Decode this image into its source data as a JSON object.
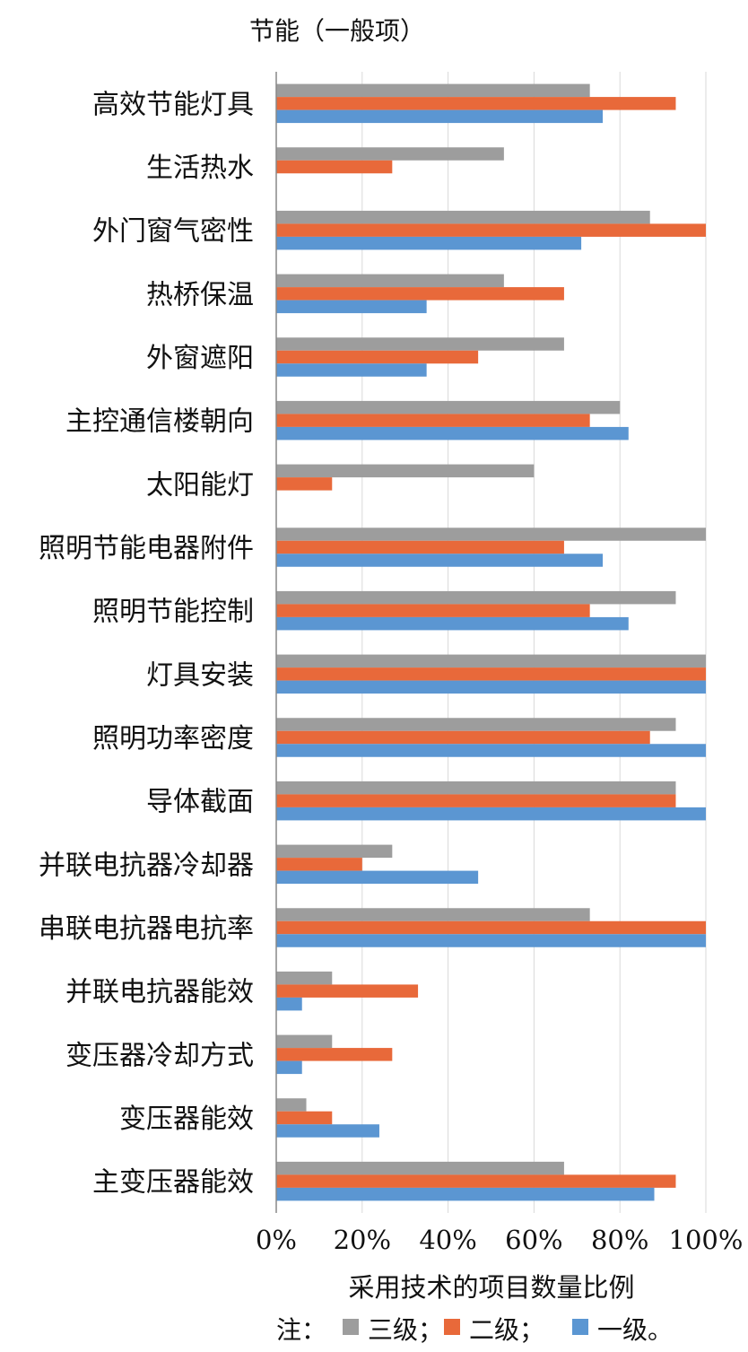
{
  "chart_data": {
    "type": "bar",
    "orientation": "horizontal",
    "title": "节能（一般项）",
    "xlabel": "采用技术的项目数量比例",
    "ylabel": "",
    "xlim": [
      0,
      100
    ],
    "x_ticks": [
      "0%",
      "20%",
      "40%",
      "60%",
      "80%",
      "100%"
    ],
    "grid": "vertical",
    "legend": {
      "position": "bottom",
      "prefix": "注：",
      "entries": [
        "三级；",
        "二级；",
        "一级。"
      ]
    },
    "categories": [
      "高效节能灯具",
      "生活热水",
      "外门窗气密性",
      "热桥保温",
      "外窗遮阳",
      "主控通信楼朝向",
      "太阳能灯",
      "照明节能电器附件",
      "照明节能控制",
      "灯具安装",
      "照明功率密度",
      "导体截面",
      "并联电抗器冷却器",
      "串联电抗器电抗率",
      "并联电抗器能效",
      "变压器冷却方式",
      "变压器能效",
      "主变压器能效"
    ],
    "series": [
      {
        "name": "三级",
        "color": "#9d9d9d",
        "values": [
          73,
          53,
          87,
          53,
          67,
          80,
          60,
          100,
          93,
          100,
          93,
          93,
          27,
          73,
          13,
          13,
          7,
          67
        ]
      },
      {
        "name": "二级",
        "color": "#e8693a",
        "values": [
          93,
          27,
          100,
          67,
          47,
          73,
          13,
          67,
          73,
          100,
          87,
          93,
          20,
          100,
          33,
          27,
          13,
          93
        ]
      },
      {
        "name": "一级",
        "color": "#5b96d2",
        "values": [
          76,
          0,
          71,
          35,
          35,
          82,
          0,
          76,
          82,
          100,
          100,
          100,
          47,
          100,
          6,
          6,
          24,
          88
        ]
      }
    ]
  }
}
